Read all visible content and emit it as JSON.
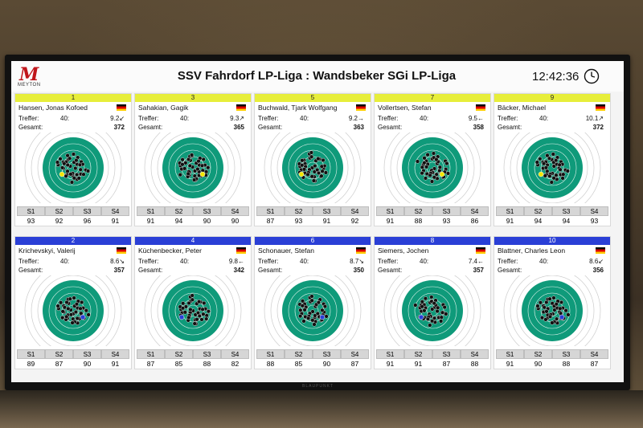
{
  "header": {
    "logo_text": "M",
    "logo_sub": "MEYTON",
    "title": "SSV Fahrdorf LP-Liga : Wandsbeker SGi LP-Liga",
    "time": "12:42:36"
  },
  "labels": {
    "treffer": "Treffer:",
    "gesamt": "Gesamt:",
    "s1": "S1",
    "s2": "S2",
    "s3": "S3",
    "s4": "S4"
  },
  "cards": [
    {
      "pos": "1",
      "name": "Hansen, Jonas Kofoed",
      "treffer": "40:",
      "last": "9.2↙",
      "gesamt": "372",
      "s": [
        "93",
        "92",
        "96",
        "91"
      ],
      "color": "yellow"
    },
    {
      "pos": "3",
      "name": "Sahakian, Gagik",
      "treffer": "40:",
      "last": "9.3↗",
      "gesamt": "365",
      "s": [
        "91",
        "94",
        "90",
        "90"
      ],
      "color": "yellow"
    },
    {
      "pos": "5",
      "name": "Buchwald, Tjark Wolfgang",
      "treffer": "40:",
      "last": "9.2→",
      "gesamt": "363",
      "s": [
        "87",
        "93",
        "91",
        "92"
      ],
      "color": "yellow"
    },
    {
      "pos": "7",
      "name": "Vollertsen, Stefan",
      "treffer": "40:",
      "last": "9.5←",
      "gesamt": "358",
      "s": [
        "91",
        "88",
        "93",
        "86"
      ],
      "color": "yellow"
    },
    {
      "pos": "9",
      "name": "Bäcker, Michael",
      "treffer": "40:",
      "last": "10.1↗",
      "gesamt": "372",
      "s": [
        "91",
        "94",
        "94",
        "93"
      ],
      "color": "yellow"
    },
    {
      "pos": "2",
      "name": "Krichevskyi, Valerij",
      "treffer": "40:",
      "last": "8.6↘",
      "gesamt": "357",
      "s": [
        "89",
        "87",
        "90",
        "91"
      ],
      "color": "blue"
    },
    {
      "pos": "4",
      "name": "Küchenbecker, Peter",
      "treffer": "40:",
      "last": "9.8←",
      "gesamt": "342",
      "s": [
        "87",
        "85",
        "88",
        "82"
      ],
      "color": "blue"
    },
    {
      "pos": "6",
      "name": "Schonauer, Stefan",
      "treffer": "40:",
      "last": "8.7↘",
      "gesamt": "350",
      "s": [
        "88",
        "85",
        "90",
        "87"
      ],
      "color": "blue"
    },
    {
      "pos": "8",
      "name": "Siemers, Jochen",
      "treffer": "40:",
      "last": "7.4←",
      "gesamt": "357",
      "s": [
        "91",
        "91",
        "87",
        "88"
      ],
      "color": "blue"
    },
    {
      "pos": "10",
      "name": "Blattner, Charles Leon",
      "treffer": "40:",
      "last": "8.6↙",
      "gesamt": "356",
      "s": [
        "91",
        "90",
        "88",
        "87"
      ],
      "color": "blue"
    }
  ],
  "tv_brand": "BLAUPUNKT",
  "colors": {
    "target_green": "#0f9a7a",
    "yellow_bar": "#e7ee3a",
    "blue_bar": "#2a3fd6",
    "logo_red": "#c0161b"
  }
}
